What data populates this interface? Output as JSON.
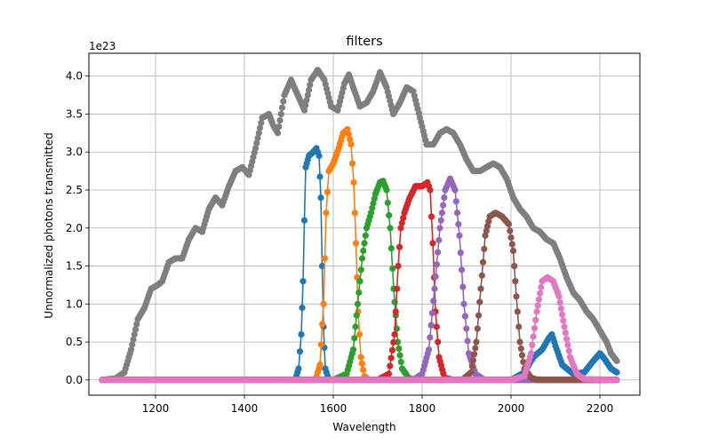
{
  "chart_data": {
    "type": "line",
    "title": "filters",
    "xlabel": "Wavelength",
    "ylabel": "Unnormalized photons transmitted",
    "y_scale_label": "1e23",
    "xlim": [
      1050,
      2290
    ],
    "ylim": [
      -0.2,
      4.3
    ],
    "x_ticks": [
      1200,
      1400,
      1600,
      1800,
      2000,
      2200
    ],
    "x_tick_labels": [
      "1200",
      "1400",
      "1600",
      "1800",
      "2000",
      "2200"
    ],
    "y_ticks": [
      0.0,
      0.5,
      1.0,
      1.5,
      2.0,
      2.5,
      3.0,
      3.5,
      4.0
    ],
    "y_tick_labels": [
      "0.0",
      "0.5",
      "1.0",
      "1.5",
      "2.0",
      "2.5",
      "3.0",
      "3.5",
      "4.0"
    ],
    "grid": true,
    "legend": "none",
    "marker": "circle",
    "series": [
      {
        "color": "#7f7f7f",
        "points": [
          [
            1080,
            0
          ],
          [
            1110,
            0.02
          ],
          [
            1130,
            0.1
          ],
          [
            1145,
            0.4
          ],
          [
            1160,
            0.8
          ],
          [
            1175,
            0.95
          ],
          [
            1190,
            1.2
          ],
          [
            1205,
            1.25
          ],
          [
            1215,
            1.3
          ],
          [
            1230,
            1.55
          ],
          [
            1245,
            1.6
          ],
          [
            1260,
            1.6
          ],
          [
            1275,
            1.85
          ],
          [
            1290,
            2.0
          ],
          [
            1305,
            1.95
          ],
          [
            1320,
            2.25
          ],
          [
            1335,
            2.4
          ],
          [
            1350,
            2.3
          ],
          [
            1365,
            2.55
          ],
          [
            1380,
            2.75
          ],
          [
            1395,
            2.8
          ],
          [
            1410,
            2.7
          ],
          [
            1425,
            3.05
          ],
          [
            1440,
            3.45
          ],
          [
            1455,
            3.5
          ],
          [
            1465,
            3.35
          ],
          [
            1475,
            3.25
          ],
          [
            1490,
            3.75
          ],
          [
            1505,
            3.95
          ],
          [
            1520,
            3.75
          ],
          [
            1535,
            3.55
          ],
          [
            1550,
            3.95
          ],
          [
            1565,
            4.08
          ],
          [
            1580,
            3.95
          ],
          [
            1595,
            3.6
          ],
          [
            1610,
            3.55
          ],
          [
            1625,
            3.9
          ],
          [
            1635,
            4.02
          ],
          [
            1645,
            3.85
          ],
          [
            1660,
            3.6
          ],
          [
            1675,
            3.65
          ],
          [
            1690,
            3.8
          ],
          [
            1705,
            4.05
          ],
          [
            1720,
            3.85
          ],
          [
            1735,
            3.5
          ],
          [
            1750,
            3.65
          ],
          [
            1765,
            3.85
          ],
          [
            1780,
            3.8
          ],
          [
            1795,
            3.45
          ],
          [
            1810,
            3.1
          ],
          [
            1825,
            3.1
          ],
          [
            1840,
            3.25
          ],
          [
            1855,
            3.3
          ],
          [
            1870,
            3.25
          ],
          [
            1885,
            3.1
          ],
          [
            1900,
            2.9
          ],
          [
            1915,
            2.75
          ],
          [
            1930,
            2.75
          ],
          [
            1945,
            2.8
          ],
          [
            1960,
            2.85
          ],
          [
            1975,
            2.8
          ],
          [
            1990,
            2.65
          ],
          [
            2005,
            2.4
          ],
          [
            2020,
            2.25
          ],
          [
            2035,
            2.15
          ],
          [
            2050,
            2.0
          ],
          [
            2065,
            1.95
          ],
          [
            2080,
            1.85
          ],
          [
            2095,
            1.8
          ],
          [
            2110,
            1.6
          ],
          [
            2125,
            1.35
          ],
          [
            2140,
            1.15
          ],
          [
            2155,
            1.05
          ],
          [
            2170,
            0.9
          ],
          [
            2185,
            0.8
          ],
          [
            2200,
            0.65
          ],
          [
            2215,
            0.5
          ],
          [
            2225,
            0.35
          ],
          [
            2238,
            0.25
          ]
        ]
      },
      {
        "color": "#1f77b4",
        "points": [
          [
            1080,
            0
          ],
          [
            1500,
            0
          ],
          [
            1515,
            0.01
          ],
          [
            1522,
            0.15
          ],
          [
            1528,
            0.6
          ],
          [
            1532,
            1.3
          ],
          [
            1535,
            2.1
          ],
          [
            1538,
            2.8
          ],
          [
            1545,
            2.95
          ],
          [
            1555,
            3.0
          ],
          [
            1562,
            3.05
          ],
          [
            1568,
            2.95
          ],
          [
            1572,
            2.4
          ],
          [
            1575,
            1.5
          ],
          [
            1578,
            0.7
          ],
          [
            1582,
            0.15
          ],
          [
            1590,
            0
          ],
          [
            2000,
            0
          ],
          [
            2030,
            0.1
          ],
          [
            2050,
            0.3
          ],
          [
            2070,
            0.4
          ],
          [
            2085,
            0.55
          ],
          [
            2092,
            0.6
          ],
          [
            2100,
            0.45
          ],
          [
            2115,
            0.2
          ],
          [
            2140,
            0.08
          ],
          [
            2165,
            0.1
          ],
          [
            2185,
            0.25
          ],
          [
            2200,
            0.35
          ],
          [
            2210,
            0.28
          ],
          [
            2225,
            0.15
          ],
          [
            2238,
            0.1
          ]
        ]
      },
      {
        "color": "#ff7f0e",
        "points": [
          [
            1080,
            0
          ],
          [
            1560,
            0
          ],
          [
            1570,
            0.2
          ],
          [
            1578,
            1.0
          ],
          [
            1584,
            2.2
          ],
          [
            1590,
            2.75
          ],
          [
            1600,
            2.85
          ],
          [
            1612,
            3.05
          ],
          [
            1622,
            3.25
          ],
          [
            1632,
            3.3
          ],
          [
            1640,
            3.1
          ],
          [
            1646,
            2.6
          ],
          [
            1651,
            1.8
          ],
          [
            1656,
            0.9
          ],
          [
            1662,
            0.3
          ],
          [
            1670,
            0.05
          ],
          [
            1680,
            0
          ],
          [
            2238,
            0
          ]
        ]
      },
      {
        "color": "#2ca02c",
        "points": [
          [
            1080,
            0
          ],
          [
            1600,
            0
          ],
          [
            1630,
            0.08
          ],
          [
            1645,
            0.4
          ],
          [
            1655,
            1.0
          ],
          [
            1665,
            1.6
          ],
          [
            1675,
            2.0
          ],
          [
            1685,
            2.2
          ],
          [
            1695,
            2.45
          ],
          [
            1705,
            2.6
          ],
          [
            1712,
            2.62
          ],
          [
            1720,
            2.5
          ],
          [
            1728,
            2.0
          ],
          [
            1736,
            1.2
          ],
          [
            1745,
            0.5
          ],
          [
            1755,
            0.15
          ],
          [
            1770,
            0.02
          ],
          [
            1790,
            0
          ],
          [
            2238,
            0
          ]
        ]
      },
      {
        "color": "#d62728",
        "points": [
          [
            1080,
            0
          ],
          [
            1700,
            0
          ],
          [
            1725,
            0.08
          ],
          [
            1738,
            0.6
          ],
          [
            1746,
            1.5
          ],
          [
            1752,
            2.0
          ],
          [
            1760,
            2.2
          ],
          [
            1772,
            2.4
          ],
          [
            1785,
            2.55
          ],
          [
            1800,
            2.55
          ],
          [
            1812,
            2.6
          ],
          [
            1818,
            2.5
          ],
          [
            1824,
            1.8
          ],
          [
            1830,
            0.9
          ],
          [
            1838,
            0.3
          ],
          [
            1850,
            0.03
          ],
          [
            1870,
            0
          ],
          [
            2238,
            0
          ]
        ]
      },
      {
        "color": "#9467bd",
        "points": [
          [
            1080,
            0
          ],
          [
            1780,
            0
          ],
          [
            1800,
            0.08
          ],
          [
            1815,
            0.4
          ],
          [
            1828,
            1.2
          ],
          [
            1840,
            2.0
          ],
          [
            1852,
            2.5
          ],
          [
            1863,
            2.65
          ],
          [
            1874,
            2.5
          ],
          [
            1884,
            1.9
          ],
          [
            1894,
            1.0
          ],
          [
            1905,
            0.35
          ],
          [
            1920,
            0.08
          ],
          [
            1940,
            0
          ],
          [
            2238,
            0
          ]
        ]
      },
      {
        "color": "#8c564b",
        "points": [
          [
            1080,
            0
          ],
          [
            1890,
            0
          ],
          [
            1910,
            0.1
          ],
          [
            1922,
            0.5
          ],
          [
            1932,
            1.2
          ],
          [
            1942,
            1.9
          ],
          [
            1952,
            2.15
          ],
          [
            1965,
            2.2
          ],
          [
            1980,
            2.15
          ],
          [
            1995,
            2.05
          ],
          [
            2005,
            1.7
          ],
          [
            2012,
            1.1
          ],
          [
            2020,
            0.5
          ],
          [
            2030,
            0.15
          ],
          [
            2045,
            0.03
          ],
          [
            2060,
            0
          ],
          [
            2238,
            0
          ]
        ]
      },
      {
        "color": "#e377c2",
        "points": [
          [
            1080,
            0
          ],
          [
            2000,
            0
          ],
          [
            2030,
            0.05
          ],
          [
            2045,
            0.35
          ],
          [
            2058,
            0.9
          ],
          [
            2070,
            1.3
          ],
          [
            2082,
            1.35
          ],
          [
            2095,
            1.3
          ],
          [
            2108,
            1.1
          ],
          [
            2120,
            0.7
          ],
          [
            2133,
            0.3
          ],
          [
            2148,
            0.08
          ],
          [
            2165,
            0.01
          ],
          [
            2238,
            0
          ]
        ]
      }
    ]
  }
}
